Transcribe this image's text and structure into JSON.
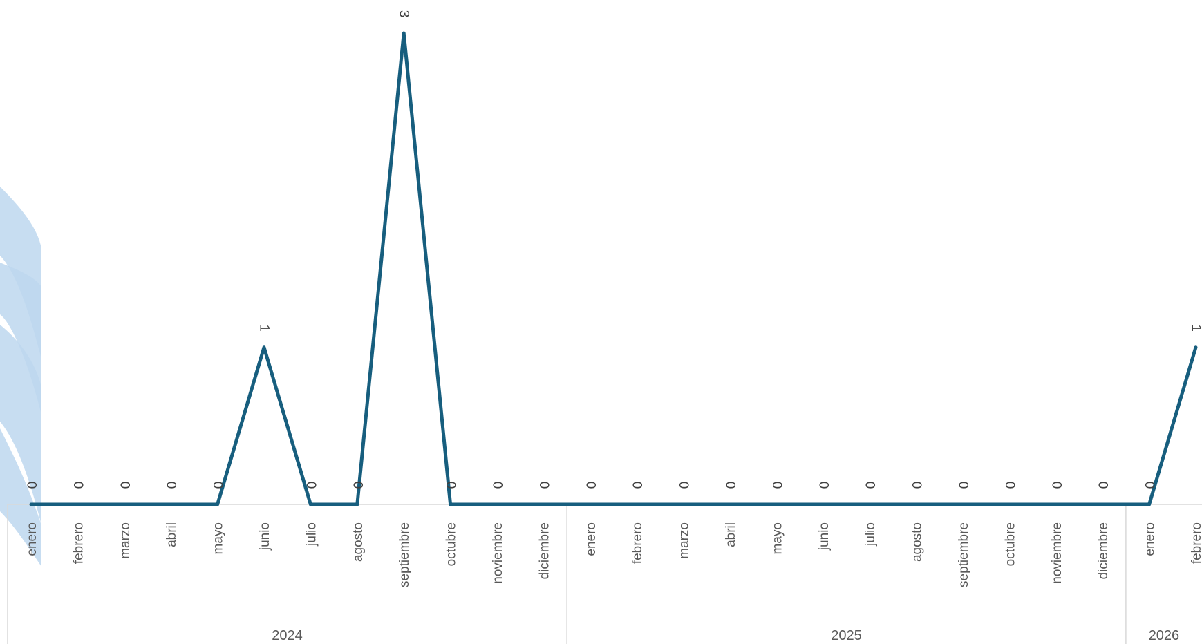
{
  "chart_data": {
    "type": "line",
    "title": "",
    "xlabel": "",
    "ylabel": "",
    "ylim": [
      0,
      3
    ],
    "grid": false,
    "legend": "none",
    "colors": {
      "line": "#175E7E",
      "axis": "#D9D9D9",
      "watermark": "#BDD7EE"
    },
    "year_groups": [
      {
        "year": "2024",
        "count": 12
      },
      {
        "year": "2025",
        "count": 12
      },
      {
        "year": "2026",
        "count": 2
      }
    ],
    "categories": [
      "enero",
      "febrero",
      "marzo",
      "abril",
      "mayo",
      "junio",
      "julio",
      "agosto",
      "septiembre",
      "octubre",
      "noviembre",
      "diciembre",
      "enero",
      "febrero",
      "marzo",
      "abril",
      "mayo",
      "junio",
      "julio",
      "agosto",
      "septiembre",
      "octubre",
      "noviembre",
      "diciembre",
      "enero",
      "febrero"
    ],
    "values": [
      0,
      0,
      0,
      0,
      0,
      1,
      0,
      0,
      3,
      0,
      0,
      0,
      0,
      0,
      0,
      0,
      0,
      0,
      0,
      0,
      0,
      0,
      0,
      0,
      0,
      1
    ],
    "data_labels": true
  }
}
